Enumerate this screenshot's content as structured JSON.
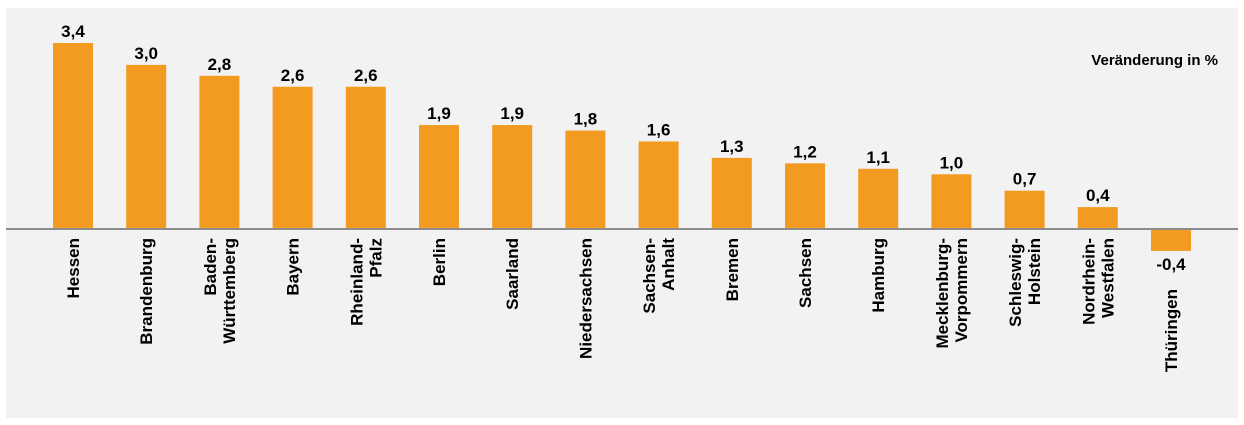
{
  "chart_data": {
    "type": "bar",
    "unit_label": "Veränderung in %",
    "categories": [
      [
        "Hessen"
      ],
      [
        "Brandenburg"
      ],
      [
        "Baden-",
        "Württemberg"
      ],
      [
        "Bayern"
      ],
      [
        "Rheinland-",
        "Pfalz"
      ],
      [
        "Berlin"
      ],
      [
        "Saarland"
      ],
      [
        "Niedersachsen"
      ],
      [
        "Sachsen-",
        "Anhalt"
      ],
      [
        "Bremen"
      ],
      [
        "Sachsen"
      ],
      [
        "Hamburg"
      ],
      [
        "Mecklenburg-",
        "Vorpommern"
      ],
      [
        "Schleswig-",
        "Holstein"
      ],
      [
        "Nordrhein-",
        "Westfalen"
      ],
      [
        "Thüringen"
      ]
    ],
    "values": [
      3.4,
      3.0,
      2.8,
      2.6,
      2.6,
      1.9,
      1.9,
      1.8,
      1.6,
      1.3,
      1.2,
      1.1,
      1.0,
      0.7,
      0.4,
      -0.4
    ],
    "value_labels": [
      "3,4",
      "3,0",
      "2,8",
      "2,6",
      "2,6",
      "1,9",
      "1,9",
      "1,8",
      "1,6",
      "1,3",
      "1,2",
      "1,1",
      "1,0",
      "0,7",
      "0,4",
      "-0,4"
    ],
    "ylim": [
      -0.4,
      3.4
    ],
    "bar_color": "#f39a20",
    "axis_color": "#8c8c8c",
    "background": "#f2f2f2",
    "grid": false
  }
}
